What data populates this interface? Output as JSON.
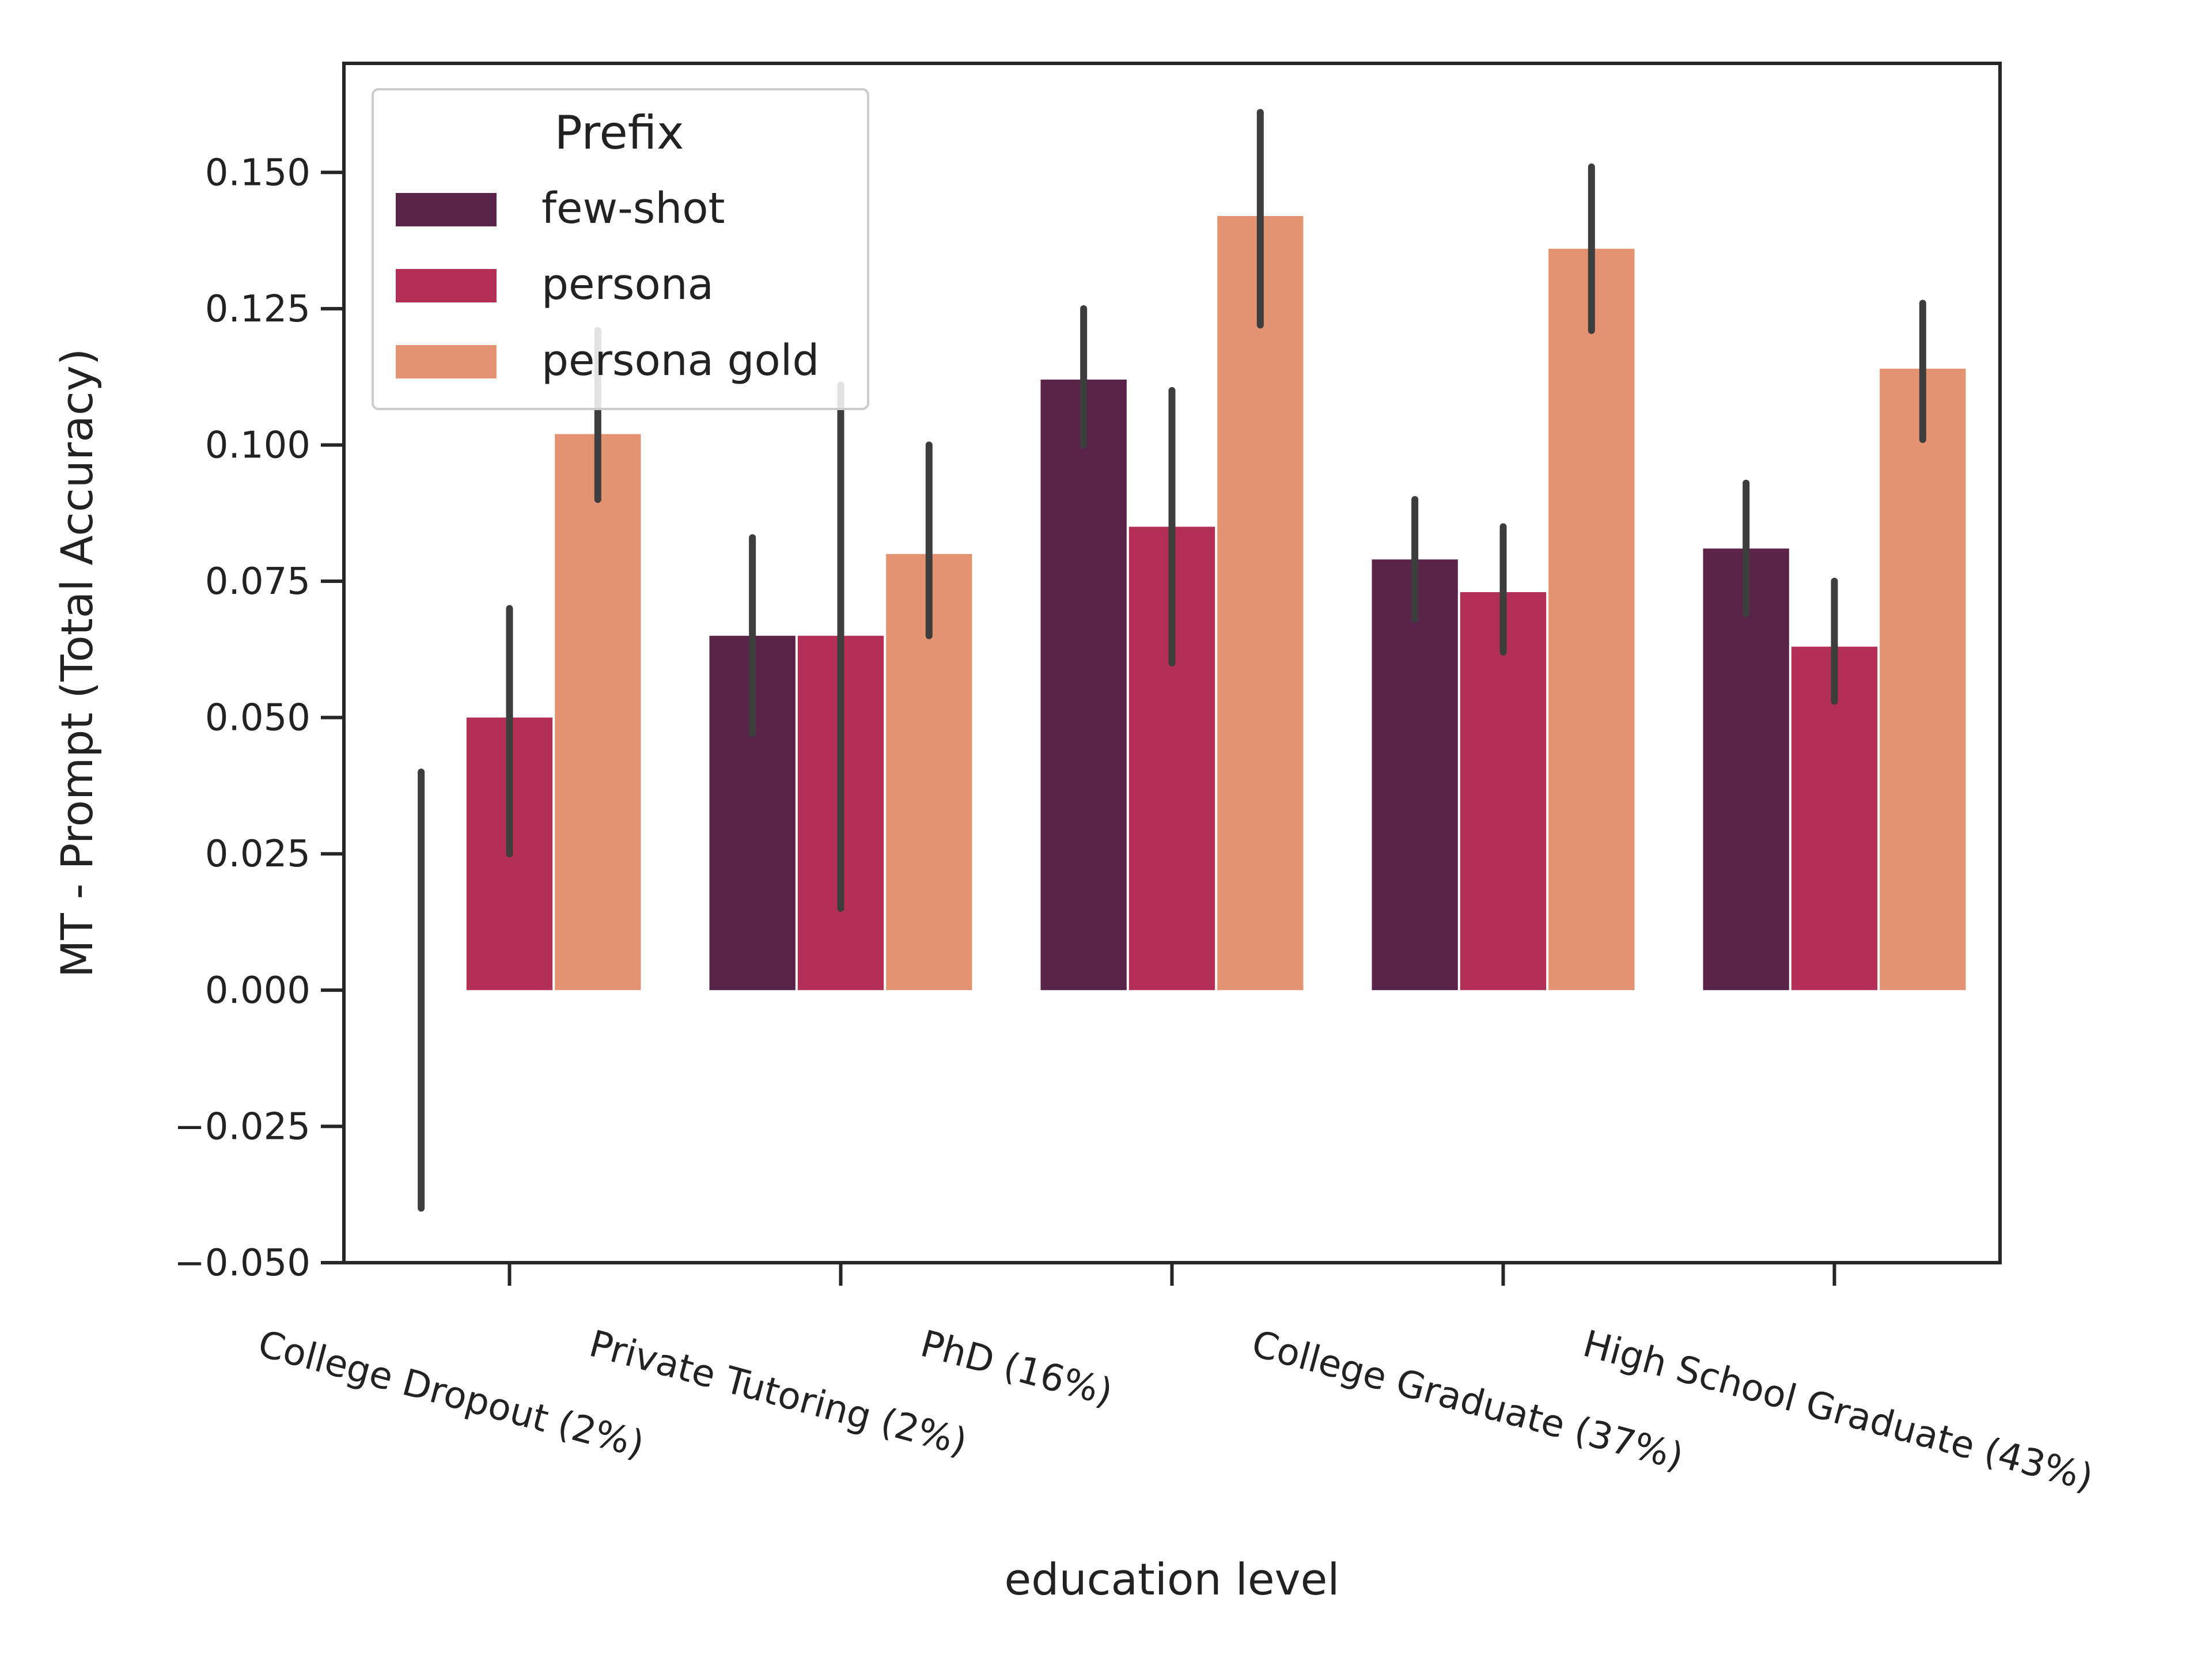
{
  "chart_data": {
    "type": "bar",
    "xlabel": "education level",
    "ylabel": "MT - Prompt (Total Accuracy)",
    "ylim": [
      -0.05,
      0.17
    ],
    "yticks": [
      -0.05,
      -0.025,
      0.0,
      0.025,
      0.05,
      0.075,
      0.1,
      0.125,
      0.15
    ],
    "ytick_labels": [
      "−0.050",
      "−0.025",
      "0.000",
      "0.025",
      "0.050",
      "0.075",
      "0.100",
      "0.125",
      "0.150"
    ],
    "categories": [
      "College Dropout (2%)",
      "Private Tutoring (2%)",
      "PhD (16%)",
      "College Graduate (37%)",
      "High School Graduate (43%)"
    ],
    "legend": {
      "title": "Prefix",
      "position": "top-left"
    },
    "grid": false,
    "series": [
      {
        "name": "few-shot",
        "color": "#5a2349",
        "values": [
          0.0,
          0.065,
          0.112,
          0.079,
          0.081
        ],
        "err_low": [
          -0.04,
          0.047,
          0.1,
          0.068,
          0.069
        ],
        "err_high": [
          0.04,
          0.083,
          0.125,
          0.09,
          0.093
        ]
      },
      {
        "name": "persona",
        "color": "#b42f55",
        "values": [
          0.05,
          0.065,
          0.085,
          0.073,
          0.063
        ],
        "err_low": [
          0.025,
          0.015,
          0.06,
          0.062,
          0.053
        ],
        "err_high": [
          0.07,
          0.111,
          0.11,
          0.085,
          0.075
        ]
      },
      {
        "name": "persona gold",
        "color": "#e39372",
        "values": [
          0.102,
          0.08,
          0.142,
          0.136,
          0.114
        ],
        "err_low": [
          0.09,
          0.065,
          0.122,
          0.121,
          0.101
        ],
        "err_high": [
          0.121,
          0.1,
          0.161,
          0.151,
          0.126
        ]
      }
    ]
  }
}
